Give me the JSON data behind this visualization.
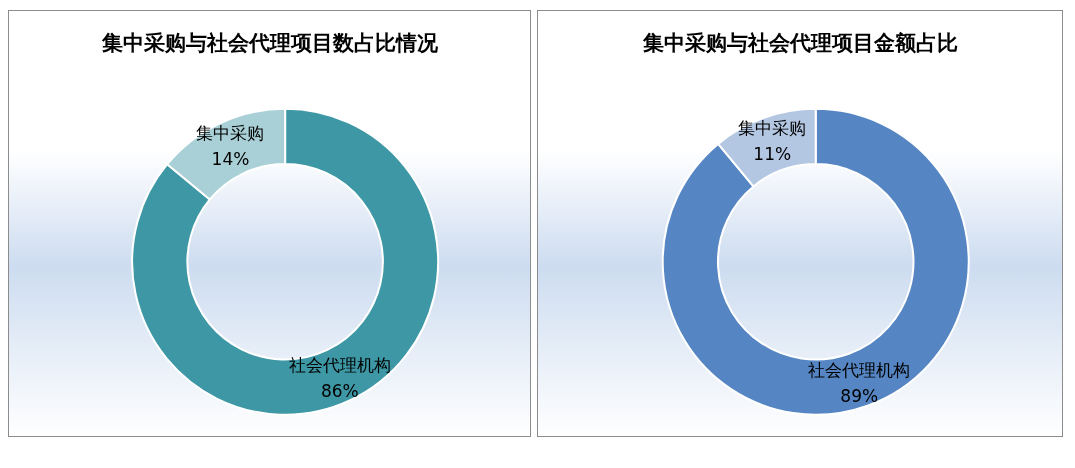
{
  "chart_data": [
    {
      "type": "donut",
      "title": "集中采购与社会代理项目数占比情况",
      "categories": [
        "社会代理机构",
        "集中采购"
      ],
      "values": [
        86,
        14
      ],
      "value_labels": [
        "86%",
        "14%"
      ],
      "colors": [
        "#3d97a5",
        "#a9d0d6"
      ],
      "legend": false
    },
    {
      "type": "donut",
      "title": "集中采购与社会代理项目金额占比",
      "categories": [
        "社会代理机构",
        "集中采购"
      ],
      "values": [
        89,
        11
      ],
      "value_labels": [
        "89%",
        "11%"
      ],
      "colors": [
        "#5585c2",
        "#b3c7e3"
      ],
      "legend": false
    }
  ]
}
